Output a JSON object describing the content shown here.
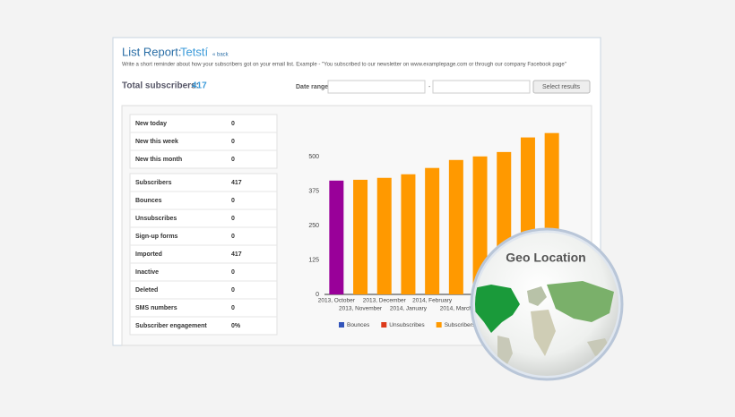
{
  "header": {
    "title": "List Report:",
    "list_name": "Tetstí",
    "back": "« back",
    "description": "Write a short reminder about how your subscribers got on your email list. Example - \"You subscribed to our newsletter on www.examplepage.com or through our company Facebook page\""
  },
  "summary": {
    "label": "Total subscribers:",
    "value": "417"
  },
  "filter": {
    "label": "Date range",
    "separator": "-",
    "button": "Select results"
  },
  "stats": {
    "recent": [
      [
        "New today",
        "0"
      ],
      [
        "New this week",
        "0"
      ],
      [
        "New this month",
        "0"
      ]
    ],
    "totals": [
      [
        "Subscribers",
        "417"
      ],
      [
        "Bounces",
        "0"
      ],
      [
        "Unsubscribes",
        "0"
      ],
      [
        "Sign-up forms",
        "0"
      ],
      [
        "Imported",
        "417"
      ],
      [
        "Inactive",
        "0"
      ],
      [
        "Deleted",
        "0"
      ],
      [
        "SMS numbers",
        "0"
      ],
      [
        "Subscriber engagement",
        "0%"
      ]
    ]
  },
  "chart_data": {
    "type": "bar",
    "stacked": true,
    "categories": [
      "2013, October",
      "2013, November",
      "2013, December",
      "2014, January",
      "2014, February",
      "2014, March",
      null,
      null,
      null,
      null
    ],
    "series": [
      {
        "name": "Bounces",
        "color": "#3355bb",
        "values": [
          0,
          0,
          0,
          0,
          0,
          0,
          0,
          0,
          0,
          0
        ]
      },
      {
        "name": "Unsubscribes",
        "color": "#dd3a1a",
        "values": [
          0,
          0,
          0,
          0,
          0,
          0,
          0,
          0,
          0,
          0
        ]
      },
      {
        "name": "Subscribers",
        "color": "#ff9900",
        "bar_colors": [
          "#990099",
          "#ff9900",
          "#ff9900",
          "#ff9900",
          "#ff9900",
          "#ff9900",
          "#ff9900",
          "#ff9900",
          "#ff9900",
          "#ff9900"
        ],
        "values": [
          414,
          417,
          424,
          437,
          460,
          489,
          502,
          518,
          571,
          587
        ]
      }
    ],
    "ylim": [
      0,
      625
    ],
    "yticks": [
      0,
      125,
      250,
      375,
      500
    ],
    "grid": false
  },
  "overlay": {
    "title": "Geo Location"
  }
}
